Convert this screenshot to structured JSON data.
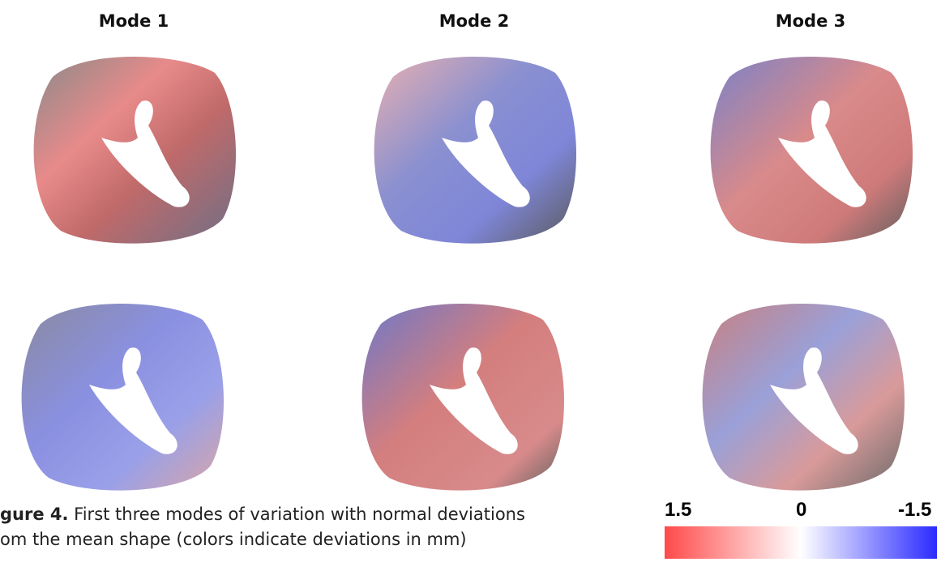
{
  "header": {
    "modes": [
      "Mode 1",
      "Mode 2",
      "Mode 3"
    ]
  },
  "caption": {
    "label": "gure 4.",
    "line1": "First three modes of variation with normal deviations",
    "line2": "om the mean shape (colors indicate deviations in mm)"
  },
  "colorbar": {
    "labels": [
      "1.5",
      "0",
      "-1.5"
    ]
  }
}
